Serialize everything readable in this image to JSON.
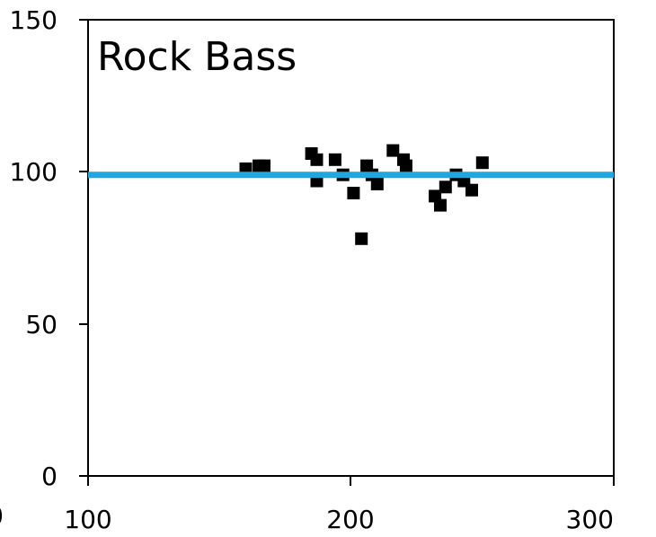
{
  "chart_data": {
    "type": "scatter",
    "title": "Rock Bass",
    "xlabel": "",
    "ylabel": "",
    "xlim": [
      100,
      300
    ],
    "ylim": [
      0,
      150
    ],
    "x_ticks": [
      "100",
      "200",
      "300"
    ],
    "y_ticks": [
      "0",
      "50",
      "100",
      "150"
    ],
    "offpage_tick": "0",
    "grid": false,
    "reference_line": {
      "y": 99,
      "color": "#1ea7e1"
    },
    "marker_color": "#000000",
    "points": [
      {
        "x": 160,
        "y": 101
      },
      {
        "x": 165,
        "y": 102
      },
      {
        "x": 167,
        "y": 102
      },
      {
        "x": 185,
        "y": 106
      },
      {
        "x": 187,
        "y": 104
      },
      {
        "x": 187,
        "y": 97
      },
      {
        "x": 194,
        "y": 104
      },
      {
        "x": 197,
        "y": 99
      },
      {
        "x": 201,
        "y": 93
      },
      {
        "x": 204,
        "y": 78
      },
      {
        "x": 206,
        "y": 102
      },
      {
        "x": 208,
        "y": 99
      },
      {
        "x": 210,
        "y": 96
      },
      {
        "x": 216,
        "y": 107
      },
      {
        "x": 220,
        "y": 104
      },
      {
        "x": 221,
        "y": 102
      },
      {
        "x": 232,
        "y": 92
      },
      {
        "x": 234,
        "y": 89
      },
      {
        "x": 236,
        "y": 95
      },
      {
        "x": 240,
        "y": 99
      },
      {
        "x": 243,
        "y": 97
      },
      {
        "x": 246,
        "y": 94
      },
      {
        "x": 250,
        "y": 103
      }
    ]
  }
}
